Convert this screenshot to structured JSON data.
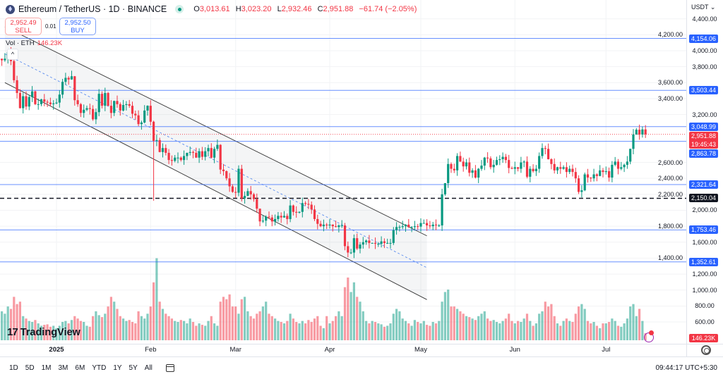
{
  "header": {
    "symbol": "Ethereum / TetherUS · 1D · BINANCE",
    "open_label": "O",
    "open": "3,013.61",
    "high_label": "H",
    "high": "3,023.20",
    "low_label": "L",
    "low": "2,932.46",
    "close_label": "C",
    "close": "2,951.88",
    "change": "−61.74 (−2.05%)"
  },
  "trade": {
    "sell_price": "2,952.49",
    "sell_label": "SELL",
    "spread": "0.01",
    "buy_price": "2,952.50",
    "buy_label": "BUY"
  },
  "volume_legend": {
    "label": "Vol · ETH",
    "value": "146.23K"
  },
  "currency": "USDT",
  "price_axis": [
    "4,400.00",
    "4,200.00",
    "4,000.00",
    "3,800.00",
    "3,600.00",
    "3,400.00",
    "3,200.00",
    "2,600.00",
    "2,400.00",
    "2,200.00",
    "2,000.00",
    "1,800.00",
    "1,600.00",
    "1,400.00",
    "1,200.00",
    "1,000.00",
    "800.00",
    "600.00"
  ],
  "price_axis_values": [
    4400,
    4200,
    4000,
    3800,
    3600,
    3400,
    3200,
    2600,
    2400,
    2200,
    2000,
    1800,
    1600,
    1400,
    1200,
    1000,
    800,
    600
  ],
  "levels": [
    {
      "value": 4154.06,
      "label": "4,154.06",
      "style": "blue"
    },
    {
      "value": 3503.44,
      "label": "3,503.44",
      "style": "blue"
    },
    {
      "value": 3048.99,
      "label": "3,048.99",
      "style": "blue"
    },
    {
      "value": 2863.78,
      "label": "2,863.78",
      "style": "blue"
    },
    {
      "value": 2321.64,
      "label": "2,321.64",
      "style": "blue"
    },
    {
      "value": 2150.04,
      "label": "2,150.04",
      "style": "black-dashed"
    },
    {
      "value": 1753.46,
      "label": "1,753.46",
      "style": "blue"
    },
    {
      "value": 1352.61,
      "label": "1,352.61",
      "style": "blue"
    }
  ],
  "last_price": {
    "value": 2951.88,
    "label": "2,951.88",
    "countdown": "19:45:43"
  },
  "volume_tag": "146.23K",
  "x_axis": [
    {
      "label": "2025",
      "day": 18
    },
    {
      "label": "Feb",
      "day": 49
    },
    {
      "label": "Mar",
      "day": 77
    },
    {
      "label": "Apr",
      "day": 108
    },
    {
      "label": "May",
      "day": 138
    },
    {
      "label": "Jun",
      "day": 169
    },
    {
      "label": "Jul",
      "day": 199
    }
  ],
  "colors": {
    "up": "#089981",
    "down": "#f23645",
    "level": "#2962ff",
    "accent": "#2962ff"
  },
  "chart_data": {
    "type": "candlestick",
    "title": "Ethereum / TetherUS · 1D · BINANCE",
    "start_date": "2024-12-14",
    "closes": [
      3880,
      3900,
      3980,
      3870,
      3630,
      3470,
      3280,
      3430,
      3300,
      3420,
      3490,
      3330,
      3330,
      3390,
      3360,
      3350,
      3330,
      3340,
      3350,
      3450,
      3610,
      3660,
      3640,
      3680,
      3380,
      3330,
      3220,
      3260,
      3280,
      3270,
      3140,
      3230,
      3460,
      3310,
      3470,
      3310,
      3220,
      3370,
      3330,
      3250,
      3320,
      3330,
      3310,
      3210,
      3190,
      3080,
      3100,
      3250,
      3310,
      3110,
      2870,
      2880,
      2730,
      2780,
      2720,
      2630,
      2620,
      2660,
      2660,
      2630,
      2680,
      2720,
      2730,
      2720,
      2660,
      2740,
      2670,
      2740,
      2780,
      2660,
      2770,
      2820,
      2510,
      2490,
      2400,
      2300,
      2230,
      2220,
      2520,
      2150,
      2180,
      2240,
      2200,
      2140,
      2020,
      1860,
      1870,
      1920,
      1910,
      1860,
      1890,
      1930,
      1910,
      1930,
      1890,
      2060,
      1980,
      1970,
      1980,
      2090,
      2080,
      2070,
      2010,
      1890,
      1830,
      1800,
      1820,
      1810,
      1820,
      1800,
      1790,
      1810,
      1810,
      1550,
      1470,
      1470,
      1650,
      1520,
      1570,
      1600,
      1620,
      1590,
      1590,
      1580,
      1580,
      1610,
      1590,
      1590,
      1590,
      1750,
      1790,
      1790,
      1800,
      1820,
      1790,
      1790,
      1800,
      1795,
      1840,
      1840,
      1810,
      1800,
      1820,
      1810,
      1810,
      2200,
      2340,
      2580,
      2520,
      2500,
      2680,
      2610,
      2550,
      2600,
      2470,
      2500,
      2410,
      2520,
      2560,
      2660,
      2650,
      2540,
      2570,
      2630,
      2640,
      2670,
      2630,
      2530,
      2520,
      2540,
      2520,
      2600,
      2610,
      2420,
      2520,
      2490,
      2520,
      2680,
      2780,
      2770,
      2640,
      2580,
      2500,
      2540,
      2520,
      2540,
      2480,
      2520,
      2480,
      2400,
      2230,
      2250,
      2450,
      2410,
      2400,
      2450,
      2430,
      2500,
      2480,
      2490,
      2410,
      2570,
      2610,
      2520,
      2540,
      2570,
      2610,
      2770,
      2950,
      3010,
      2950,
      3013.61,
      2951.88
    ],
    "volumes_k": [
      600,
      550,
      700,
      650,
      900,
      750,
      800,
      500,
      450,
      400,
      380,
      420,
      350,
      300,
      320,
      330,
      280,
      300,
      250,
      300,
      380,
      400,
      350,
      420,
      500,
      450,
      400,
      380,
      300,
      280,
      500,
      600,
      520,
      480,
      550,
      700,
      900,
      800,
      650,
      500,
      450,
      400,
      420,
      380,
      350,
      600,
      500,
      450,
      550,
      700,
      1200,
      1700,
      800,
      650,
      550,
      500,
      450,
      400,
      380,
      420,
      400,
      350,
      450,
      380,
      300,
      350,
      320,
      300,
      400,
      500,
      350,
      300,
      800,
      900,
      850,
      950,
      700,
      700,
      550,
      850,
      900,
      600,
      500,
      450,
      550,
      600,
      700,
      800,
      550,
      500,
      450,
      400,
      380,
      350,
      400,
      550,
      450,
      380,
      350,
      400,
      350,
      420,
      380,
      450,
      500,
      300,
      250,
      500,
      350,
      400,
      500,
      600,
      500,
      1100,
      1300,
      1000,
      1200,
      900,
      800,
      600,
      400,
      350,
      400,
      380,
      350,
      330,
      280,
      300,
      350,
      550,
      650,
      600,
      450,
      400,
      350,
      300,
      420,
      380,
      350,
      400,
      320,
      300,
      380,
      350,
      400,
      800,
      1000,
      1050,
      700,
      700,
      650,
      600,
      550,
      500,
      480,
      450,
      420,
      500,
      550,
      600,
      450,
      400,
      420,
      380,
      350,
      400,
      450,
      550,
      400,
      350,
      400,
      380,
      450,
      550,
      400,
      300,
      350,
      550,
      600,
      800,
      700,
      750,
      500,
      350,
      300,
      400,
      450,
      400,
      380,
      550,
      700,
      750,
      650,
      400,
      350,
      380,
      300,
      250,
      350,
      350,
      380,
      450,
      400,
      300,
      280,
      350,
      450,
      700,
      750,
      500,
      650,
      400,
      146.23
    ],
    "channel": {
      "upper": [
        {
          "day": 1,
          "price": 4300
        },
        {
          "day": 140,
          "price": 1680
        }
      ],
      "lower": [
        {
          "day": 1,
          "price": 3600
        },
        {
          "day": 140,
          "price": 880
        }
      ],
      "mid": [
        {
          "day": 1,
          "price": 3960
        },
        {
          "day": 140,
          "price": 1280
        }
      ]
    },
    "ylim": [
      550,
      4450
    ]
  },
  "range_buttons": [
    "1D",
    "5D",
    "1M",
    "3M",
    "6M",
    "YTD",
    "1Y",
    "5Y",
    "All"
  ],
  "clock": "09:44:17 UTC+5:30",
  "logo": "TradingView"
}
